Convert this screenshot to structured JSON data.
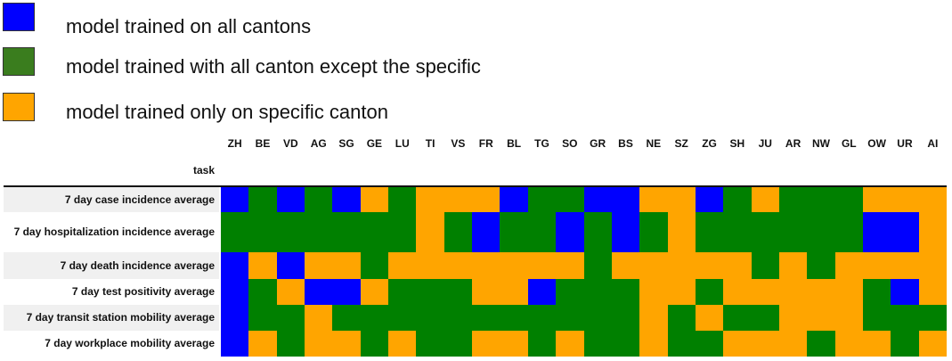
{
  "legend": [
    {
      "label": "model trained on all cantons",
      "color": "#0000ff"
    },
    {
      "label": "model trained with all canton except the specific",
      "color": "#3a7d1e"
    },
    {
      "label": "model trained only on specific canton",
      "color": "#ffa500"
    }
  ],
  "chart_data": {
    "type": "heatmap",
    "columns": [
      "ZH",
      "BE",
      "VD",
      "AG",
      "SG",
      "GE",
      "LU",
      "TI",
      "VS",
      "FR",
      "BL",
      "TG",
      "SO",
      "GR",
      "BS",
      "NE",
      "SZ",
      "ZG",
      "SH",
      "JU",
      "AR",
      "NW",
      "GL",
      "OW",
      "UR",
      "AI"
    ],
    "row_header": "task",
    "rows": [
      {
        "label": "7 day case incidence average",
        "values": [
          "B",
          "G",
          "B",
          "G",
          "B",
          "O",
          "G",
          "O",
          "O",
          "O",
          "B",
          "G",
          "G",
          "B",
          "B",
          "O",
          "O",
          "B",
          "G",
          "O",
          "G",
          "G",
          "G",
          "O",
          "O",
          "O"
        ]
      },
      {
        "label": "7 day hospitalization incidence average",
        "values": [
          "G",
          "G",
          "G",
          "G",
          "G",
          "G",
          "G",
          "O",
          "G",
          "B",
          "G",
          "G",
          "B",
          "G",
          "B",
          "G",
          "O",
          "G",
          "G",
          "G",
          "G",
          "G",
          "G",
          "B",
          "B",
          "O"
        ]
      },
      {
        "label": "7 day death incidence average",
        "values": [
          "B",
          "O",
          "B",
          "O",
          "O",
          "G",
          "O",
          "O",
          "O",
          "O",
          "O",
          "O",
          "O",
          "G",
          "O",
          "O",
          "O",
          "O",
          "O",
          "G",
          "O",
          "G",
          "O",
          "O",
          "O",
          "O"
        ]
      },
      {
        "label": "7 day test positivity average",
        "values": [
          "B",
          "G",
          "O",
          "B",
          "B",
          "O",
          "G",
          "G",
          "G",
          "O",
          "O",
          "B",
          "G",
          "G",
          "G",
          "O",
          "O",
          "G",
          "O",
          "O",
          "O",
          "O",
          "O",
          "G",
          "B",
          "O"
        ]
      },
      {
        "label": "7 day transit station mobility average",
        "values": [
          "B",
          "G",
          "G",
          "O",
          "G",
          "G",
          "G",
          "G",
          "G",
          "G",
          "G",
          "G",
          "G",
          "G",
          "G",
          "O",
          "G",
          "O",
          "G",
          "G",
          "O",
          "O",
          "O",
          "G",
          "G",
          "G"
        ]
      },
      {
        "label": "7 day workplace mobility average",
        "values": [
          "B",
          "O",
          "G",
          "O",
          "O",
          "G",
          "O",
          "G",
          "G",
          "O",
          "O",
          "G",
          "O",
          "G",
          "G",
          "O",
          "G",
          "G",
          "O",
          "O",
          "O",
          "G",
          "O",
          "O",
          "G",
          "O"
        ]
      }
    ],
    "colors": {
      "B": "#0000ff",
      "G": "#008000",
      "O": "#ffa500"
    }
  }
}
